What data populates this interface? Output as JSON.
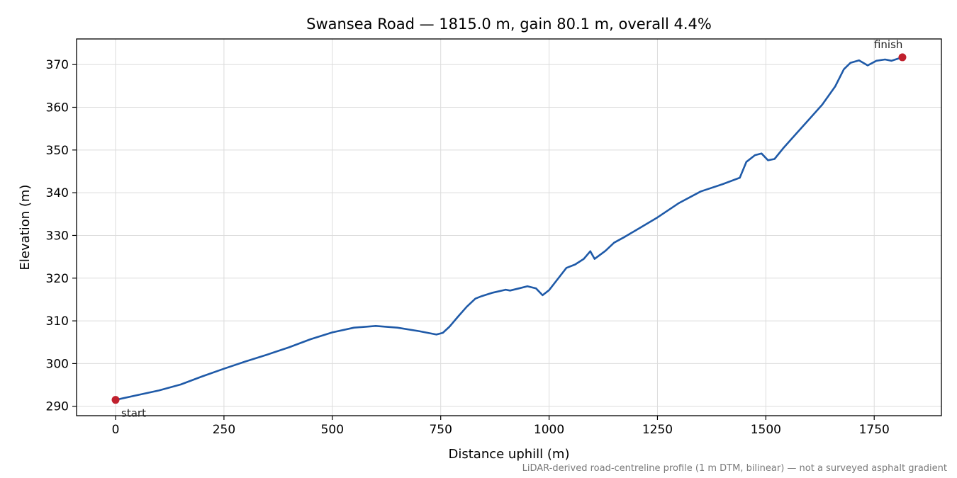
{
  "chart_data": {
    "type": "line",
    "title": "Swansea Road — 1815.0 m, gain 80.1 m, overall 4.4%",
    "xlabel": "Distance uphill (m)",
    "ylabel": "Elevation (m)",
    "footnote": "LiDAR-derived road-centreline profile (1 m DTM, bilinear) — not a surveyed asphalt gradient",
    "xlim": [
      -90,
      1905
    ],
    "ylim": [
      287.8,
      376.0
    ],
    "xticks": [
      0,
      250,
      500,
      750,
      1000,
      1250,
      1500,
      1750
    ],
    "yticks": [
      290,
      300,
      310,
      320,
      330,
      340,
      350,
      360,
      370
    ],
    "grid": true,
    "line_color": "#1f5aa8",
    "marker_color": "#c0202d",
    "series": [
      {
        "x": [
          0,
          50,
          100,
          150,
          200,
          250,
          300,
          350,
          400,
          450,
          500,
          550,
          600,
          650,
          700,
          740,
          755,
          770,
          790,
          810,
          830,
          845,
          870,
          900,
          910,
          930,
          950,
          970,
          985,
          1000,
          1020,
          1040,
          1060,
          1080,
          1095,
          1105,
          1130,
          1150,
          1175,
          1200,
          1250,
          1300,
          1350,
          1400,
          1440,
          1455,
          1475,
          1490,
          1505,
          1520,
          1540,
          1570,
          1600,
          1630,
          1660,
          1680,
          1695,
          1715,
          1735,
          1755,
          1775,
          1790,
          1815
        ],
        "y": [
          291.5,
          292.6,
          293.7,
          295.1,
          297.0,
          298.8,
          300.5,
          302.1,
          303.8,
          305.7,
          307.3,
          308.4,
          308.8,
          308.4,
          307.6,
          306.8,
          307.2,
          308.6,
          311.0,
          313.3,
          315.2,
          315.8,
          316.6,
          317.3,
          317.1,
          317.6,
          318.1,
          317.6,
          316.0,
          317.2,
          319.8,
          322.4,
          323.2,
          324.5,
          326.3,
          324.5,
          326.4,
          328.3,
          329.7,
          331.2,
          334.2,
          337.6,
          340.3,
          342.0,
          343.5,
          347.2,
          348.8,
          349.2,
          347.6,
          347.9,
          350.4,
          353.8,
          357.2,
          360.6,
          364.9,
          368.9,
          370.4,
          371.0,
          369.8,
          370.9,
          371.2,
          370.9,
          371.7
        ]
      }
    ],
    "annotations": [
      {
        "text": "start",
        "x": 0,
        "y": 291.5
      },
      {
        "text": "finish",
        "x": 1815,
        "y": 371.7
      }
    ]
  }
}
